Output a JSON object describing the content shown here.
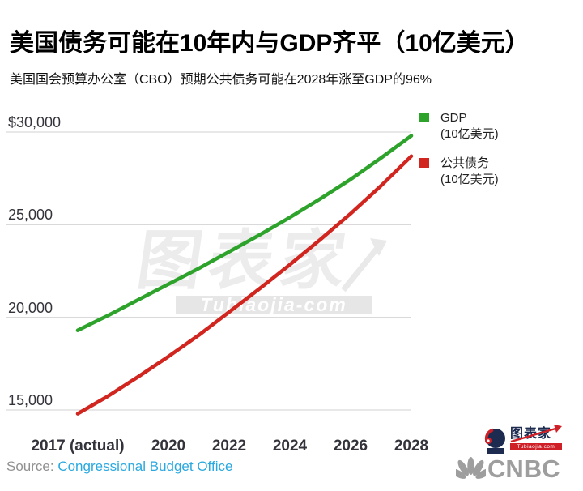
{
  "header": {
    "title": "美国债务可能在10年内与GDP齐平（10亿美元）",
    "subtitle": "美国国会预算办公室（CBO）预期公共债务可能在2028年涨至GDP的96%"
  },
  "watermark": {
    "main": "图表家",
    "sub": "Tubiaojia-com"
  },
  "legend": [
    {
      "label": "GDP",
      "unit": "(10亿美元)",
      "color": "#2ea32c"
    },
    {
      "label": "公共债务",
      "unit": "(10亿美元)",
      "color": "#d1261f"
    }
  ],
  "source": {
    "prefix": "Source:",
    "link_text": "Congressional Budget Office",
    "link_color": "#2aa9e0"
  },
  "branding": {
    "logo_text": "图表家",
    "logo_banner": "Tubiaojia.com",
    "network": "CNBC"
  },
  "chart_data": {
    "type": "line",
    "title": "美国债务可能在10年内与GDP齐平（10亿美元）",
    "subtitle": "美国国会预算办公室（CBO）预期公共债务可能在2028年涨至GDP的96%",
    "xlabel": "",
    "ylabel": "10亿美元",
    "grid": "horizontal",
    "legend_position": "top-right",
    "x": [
      2017,
      2018,
      2019,
      2020,
      2021,
      2022,
      2023,
      2024,
      2025,
      2026,
      2027,
      2028
    ],
    "x_tick_labels": [
      "2017 (actual)",
      "2020",
      "2022",
      "2024",
      "2026",
      "2028"
    ],
    "x_tick_years": [
      2017,
      2020,
      2022,
      2024,
      2026,
      2028
    ],
    "y_ticks": [
      30000,
      25000,
      20000,
      15000
    ],
    "y_tick_labels": [
      "$30,000",
      "25,000",
      "20,000",
      "15,000"
    ],
    "ylim": [
      14500,
      30500
    ],
    "series": [
      {
        "name": "GDP (10亿美元)",
        "color": "#2ea32c",
        "values": [
          19300,
          20100,
          20950,
          21800,
          22650,
          23550,
          24450,
          25400,
          26400,
          27450,
          28600,
          29800
        ]
      },
      {
        "name": "公共债务 (10亿美元)",
        "color": "#d1261f",
        "values": [
          14800,
          15750,
          16800,
          17900,
          19050,
          20300,
          21550,
          22850,
          24200,
          25600,
          27100,
          28700
        ]
      }
    ]
  }
}
